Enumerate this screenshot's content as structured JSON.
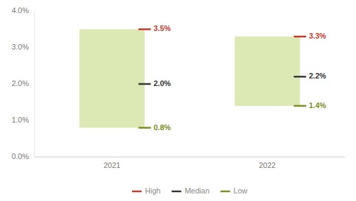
{
  "chart_data": {
    "type": "range_bar",
    "categories": [
      "2021",
      "2022"
    ],
    "color": "#dce9b5",
    "series": [
      {
        "name": "High",
        "color": "#c0392b",
        "values": [
          3.5,
          3.3
        ],
        "value_labels": [
          "3.5%",
          "3.3%"
        ]
      },
      {
        "name": "Median",
        "color": "#333333",
        "values": [
          2.0,
          2.2
        ],
        "value_labels": [
          "2.0%",
          "2.2%"
        ]
      },
      {
        "name": "Low",
        "color": "#7a8c1e",
        "values": [
          0.8,
          1.4
        ],
        "value_labels": [
          "0.8%",
          "1.4%"
        ]
      }
    ],
    "ylim": [
      0.0,
      4.0
    ],
    "yticks": [
      {
        "value": 0.0,
        "label": "0.0%"
      },
      {
        "value": 1.0,
        "label": "1.0%"
      },
      {
        "value": 2.0,
        "label": "2.0%"
      },
      {
        "value": 3.0,
        "label": "3.0%"
      },
      {
        "value": 4.0,
        "label": "4.0%"
      }
    ],
    "data_labels": true,
    "legend": "bottom",
    "grid": false
  }
}
